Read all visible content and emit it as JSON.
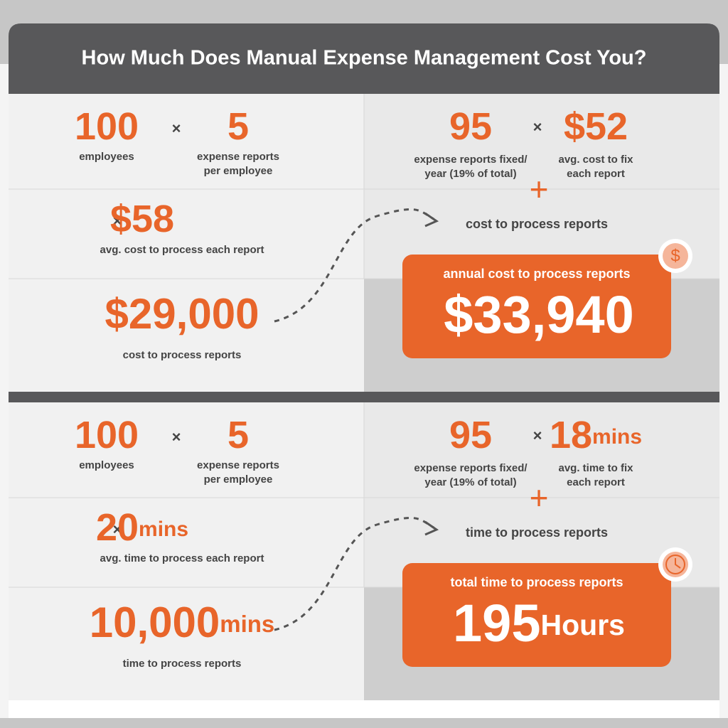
{
  "title": "How Much Does Manual Expense Management Cost You?",
  "symbols": {
    "times": "×",
    "plus": "+"
  },
  "cost": {
    "employees": {
      "value": "100",
      "label": [
        "employees"
      ]
    },
    "reports": {
      "value": "5",
      "label": [
        "expense reports",
        "per employee"
      ]
    },
    "rate": {
      "value": "$58",
      "label": [
        "avg. cost to process each report"
      ]
    },
    "subtotal": {
      "value": "$29,000",
      "label": [
        "cost to process reports"
      ]
    },
    "fixed": {
      "value": "95",
      "label": [
        "expense reports fixed/",
        "year (19% of total)"
      ]
    },
    "fix_rate": {
      "value": "$52",
      "label": [
        "avg. cost to fix",
        "each report"
      ]
    },
    "carry": "cost to process reports",
    "total": {
      "label": "annual cost to process reports",
      "value": "$33,940"
    },
    "icon": "$"
  },
  "time": {
    "employees": {
      "value": "100",
      "label": [
        "employees"
      ]
    },
    "reports": {
      "value": "5",
      "label": [
        "expense reports",
        "per employee"
      ]
    },
    "rate": {
      "value": "20",
      "unit": "mins",
      "label": [
        "avg. time to process each report"
      ]
    },
    "subtotal": {
      "value": "10,000",
      "unit": "mins",
      "label": [
        "time to process reports"
      ]
    },
    "fixed": {
      "value": "95",
      "label": [
        "expense reports fixed/",
        "year (19% of total)"
      ]
    },
    "fix_rate": {
      "value": "18",
      "unit": "mins",
      "label": [
        "avg. time to fix",
        "each report"
      ]
    },
    "carry": "time to process reports",
    "total": {
      "label": "total time to process reports",
      "value": "195",
      "unit": "Hours"
    }
  }
}
